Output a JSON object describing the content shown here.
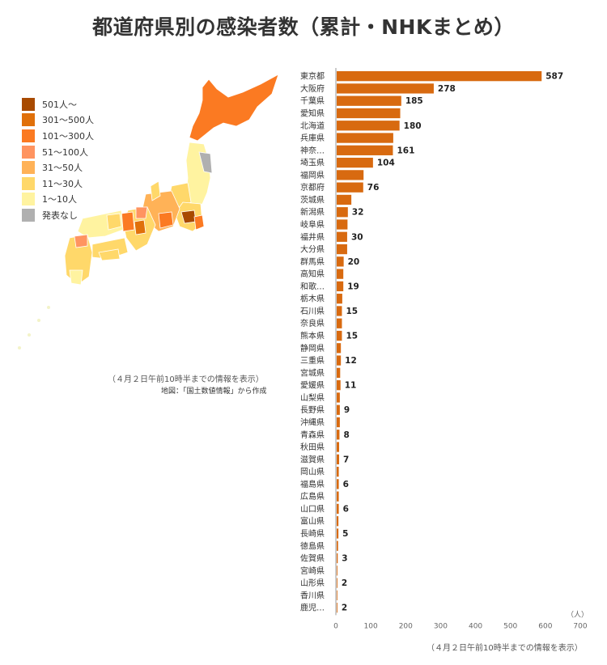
{
  "title": "都道府県別の感染者数（累計・NHKまとめ）",
  "colors": {
    "bar": "#d86a10",
    "axis": "#999999",
    "text": "#333333"
  },
  "legend": [
    {
      "label": "501人～",
      "color": "#a84a00"
    },
    {
      "label": "301～500人",
      "color": "#e0700a"
    },
    {
      "label": "101～300人",
      "color": "#fb7a22"
    },
    {
      "label": "51～100人",
      "color": "#ff9460"
    },
    {
      "label": "31～50人",
      "color": "#ffb257"
    },
    {
      "label": "11～30人",
      "color": "#ffd86a"
    },
    {
      "label": "1～10人",
      "color": "#fff3a0"
    },
    {
      "label": "発表なし",
      "color": "#b0b0b0"
    }
  ],
  "map_note": "（４月２日午前10時半までの情報を表示）",
  "map_credit": "地図：「国土数値情報」から作成",
  "chart_note": "（４月２日午前10時半までの情報を表示）",
  "chart_data": {
    "type": "bar",
    "orientation": "horizontal",
    "categories": [
      "東京都",
      "大阪府",
      "千葉県",
      "愛知県",
      "北海道",
      "兵庫県",
      "神奈…",
      "埼玉県",
      "福岡県",
      "京都府",
      "茨城県",
      "新潟県",
      "岐阜県",
      "福井県",
      "大分県",
      "群馬県",
      "高知県",
      "和歌…",
      "栃木県",
      "石川県",
      "奈良県",
      "熊本県",
      "静岡県",
      "三重県",
      "宮城県",
      "愛媛県",
      "山梨県",
      "長野県",
      "沖縄県",
      "青森県",
      "秋田県",
      "滋賀県",
      "岡山県",
      "福島県",
      "広島県",
      "山口県",
      "富山県",
      "長崎県",
      "徳島県",
      "佐賀県",
      "宮崎県",
      "山形県",
      "香川県",
      "鹿児…"
    ],
    "values": [
      587,
      278,
      185,
      182,
      180,
      162,
      161,
      104,
      77,
      76,
      42,
      32,
      31,
      30,
      30,
      20,
      19,
      19,
      16,
      15,
      15,
      15,
      12,
      12,
      10,
      11,
      9,
      9,
      9,
      8,
      7,
      7,
      6,
      6,
      6,
      6,
      5,
      5,
      4,
      3,
      2,
      2,
      1,
      2
    ],
    "data_labels": [
      "587",
      "278",
      "185",
      "",
      "180",
      "",
      "161",
      "104",
      "",
      "76",
      "",
      "32",
      "",
      "30",
      "",
      "20",
      "",
      "19",
      "",
      "15",
      "",
      "15",
      "",
      "12",
      "",
      "11",
      "",
      "9",
      "",
      "8",
      "",
      "7",
      "",
      "6",
      "",
      "6",
      "",
      "5",
      "",
      "3",
      "",
      "2",
      "",
      "2"
    ],
    "xlim": [
      0,
      700
    ],
    "xticks": [
      "0",
      "100",
      "200",
      "300",
      "400",
      "500",
      "600",
      "700"
    ],
    "unit_label": "（人）"
  }
}
